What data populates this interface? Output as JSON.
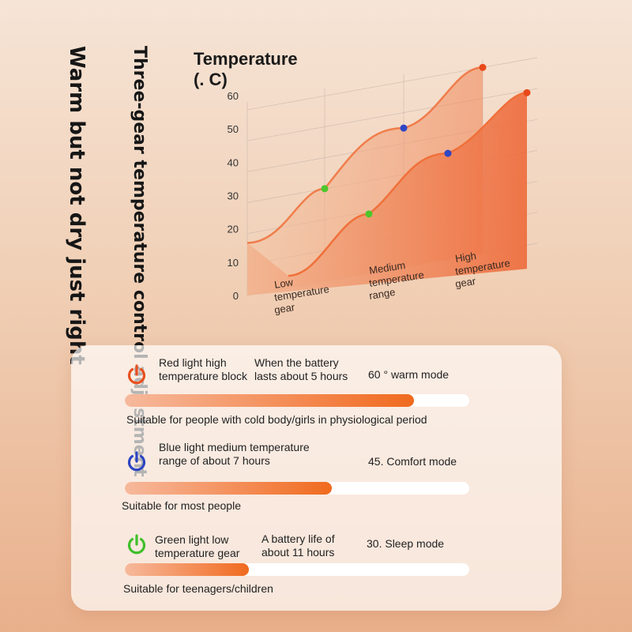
{
  "vertical_text": {
    "line1": "Warm but not dry just right",
    "line2": "Three-gear temperature control adjustment"
  },
  "chart_data": {
    "type": "line",
    "title": "Temperature\n(. C)",
    "y_ticks": [
      "0",
      "10",
      "20",
      "30",
      "40",
      "50",
      "60"
    ],
    "ylim": [
      0,
      60
    ],
    "categories": [
      "Low temperature gear",
      "Medium temperature range",
      "High temperature gear"
    ],
    "category_labels": [
      [
        "Low",
        "temperature",
        "gear"
      ],
      [
        "Medium",
        "temperature",
        "range"
      ],
      [
        "High",
        "temperature",
        "gear"
      ]
    ],
    "series": [
      {
        "values": [
          30,
          45,
          60
        ]
      },
      {
        "values": [
          30,
          45,
          60
        ]
      }
    ],
    "point_colors": [
      "#4cc62a",
      "#2f46c4",
      "#e8491b"
    ],
    "accent": "#f0703a",
    "grid": true
  },
  "modes": [
    {
      "icon": "power-icon",
      "color": "#e8501f",
      "text_a": [
        "Red light high",
        "temperature block"
      ],
      "text_b": [
        "When the battery",
        "lasts about 5 hours"
      ],
      "mode_label": "60 ° warm mode",
      "level": 0.84,
      "suitable": "Suitable for people with cold body/girls in physiological period"
    },
    {
      "icon": "power-icon",
      "color": "#2b45c2",
      "text_a": [
        "Blue light medium temperature",
        "range of about 7 hours"
      ],
      "text_b": [
        "",
        ""
      ],
      "mode_label": "45. Comfort mode",
      "level": 0.6,
      "suitable": "Suitable for most people"
    },
    {
      "icon": "power-icon",
      "color": "#3fbf2a",
      "text_a": [
        "Green light low",
        "temperature gear"
      ],
      "text_b": [
        "A battery life of",
        "about 11 hours"
      ],
      "mode_label": "30. Sleep mode",
      "level": 0.36,
      "suitable": "Suitable for teenagers/children"
    }
  ]
}
